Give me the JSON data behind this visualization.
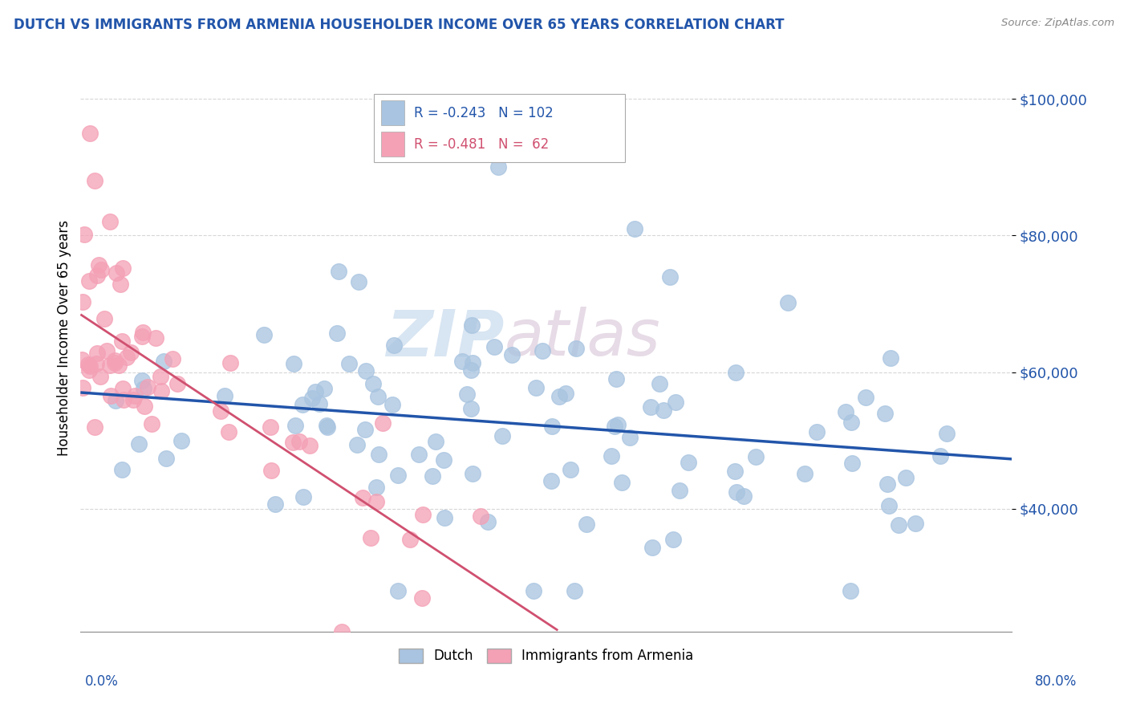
{
  "title": "DUTCH VS IMMIGRANTS FROM ARMENIA HOUSEHOLDER INCOME OVER 65 YEARS CORRELATION CHART",
  "source": "Source: ZipAtlas.com",
  "ylabel": "Householder Income Over 65 years",
  "xlim": [
    0.0,
    0.8
  ],
  "ylim": [
    22000,
    108000
  ],
  "yticks": [
    40000,
    60000,
    80000,
    100000
  ],
  "ytick_labels": [
    "$40,000",
    "$60,000",
    "$80,000",
    "$100,000"
  ],
  "dutch_color": "#a8c4e0",
  "armenia_color": "#f4a0b5",
  "dutch_line_color": "#2255aa",
  "armenia_line_color": "#d05070",
  "title_color": "#2255aa",
  "axis_label_color": "#2255aa",
  "watermark_zip": "ZIP",
  "watermark_atlas": "atlas",
  "legend_line1": "R = -0.243   N = 102",
  "legend_line2": "R = -0.481   N =  62"
}
